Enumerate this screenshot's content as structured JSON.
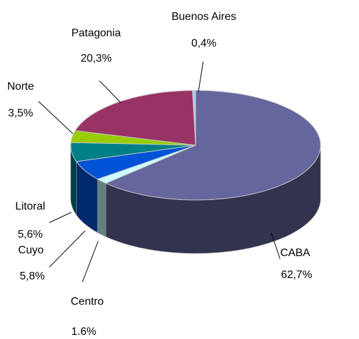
{
  "chart_data": {
    "type": "pie3d",
    "categories": [
      "CABA",
      "Centro",
      "Cuyo",
      "Litoral",
      "Norte",
      "Patagonia",
      "Buenos Aires"
    ],
    "values": [
      62.7,
      1.6,
      5.8,
      5.6,
      3.5,
      20.3,
      0.4
    ],
    "value_labels": [
      "62,7%",
      "1.6%",
      "5,8%",
      "5,6%",
      "3,5%",
      "20,3%",
      "0,4%"
    ],
    "colors": [
      "#66669e",
      "#ccffff",
      "#0052d6",
      "#007f86",
      "#99cc00",
      "#993366",
      "#a6caf0"
    ]
  }
}
